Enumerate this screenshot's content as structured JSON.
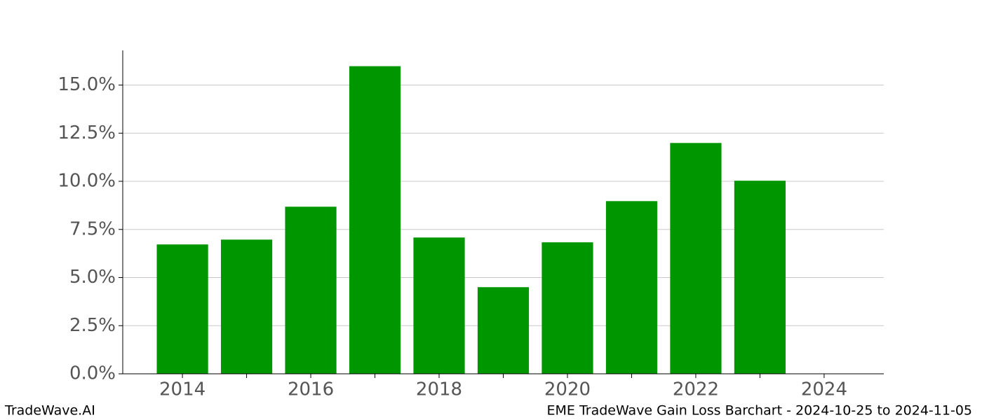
{
  "chart_data": {
    "type": "bar",
    "title": "EME TradeWave Gain Loss Barchart - 2024-10-25 to 2024-11-05",
    "source": "TradeWave.AI",
    "x": [
      2014,
      2015,
      2016,
      2017,
      2018,
      2019,
      2020,
      2021,
      2022,
      2023
    ],
    "values": [
      6.72,
      6.97,
      8.68,
      15.98,
      7.08,
      4.5,
      6.83,
      8.97,
      11.99,
      10.03
    ],
    "color": "#009600",
    "bar_width": 0.8,
    "xlim": [
      2013.07,
      2024.93
    ],
    "xticks": [
      2014,
      2016,
      2018,
      2020,
      2022,
      2024
    ],
    "xminor_ticks": [
      2015,
      2017,
      2019,
      2021,
      2023
    ],
    "ylim": [
      0,
      16.8
    ],
    "yticks": [
      {
        "value": 0,
        "label": "0.0%"
      },
      {
        "value": 2.5,
        "label": "2.5%"
      },
      {
        "value": 5,
        "label": "5.0%"
      },
      {
        "value": 7.5,
        "label": "7.5%"
      },
      {
        "value": 10,
        "label": "10.0%"
      },
      {
        "value": 12.5,
        "label": "12.5%"
      },
      {
        "value": 15,
        "label": "15.0%"
      }
    ],
    "grid": true
  }
}
